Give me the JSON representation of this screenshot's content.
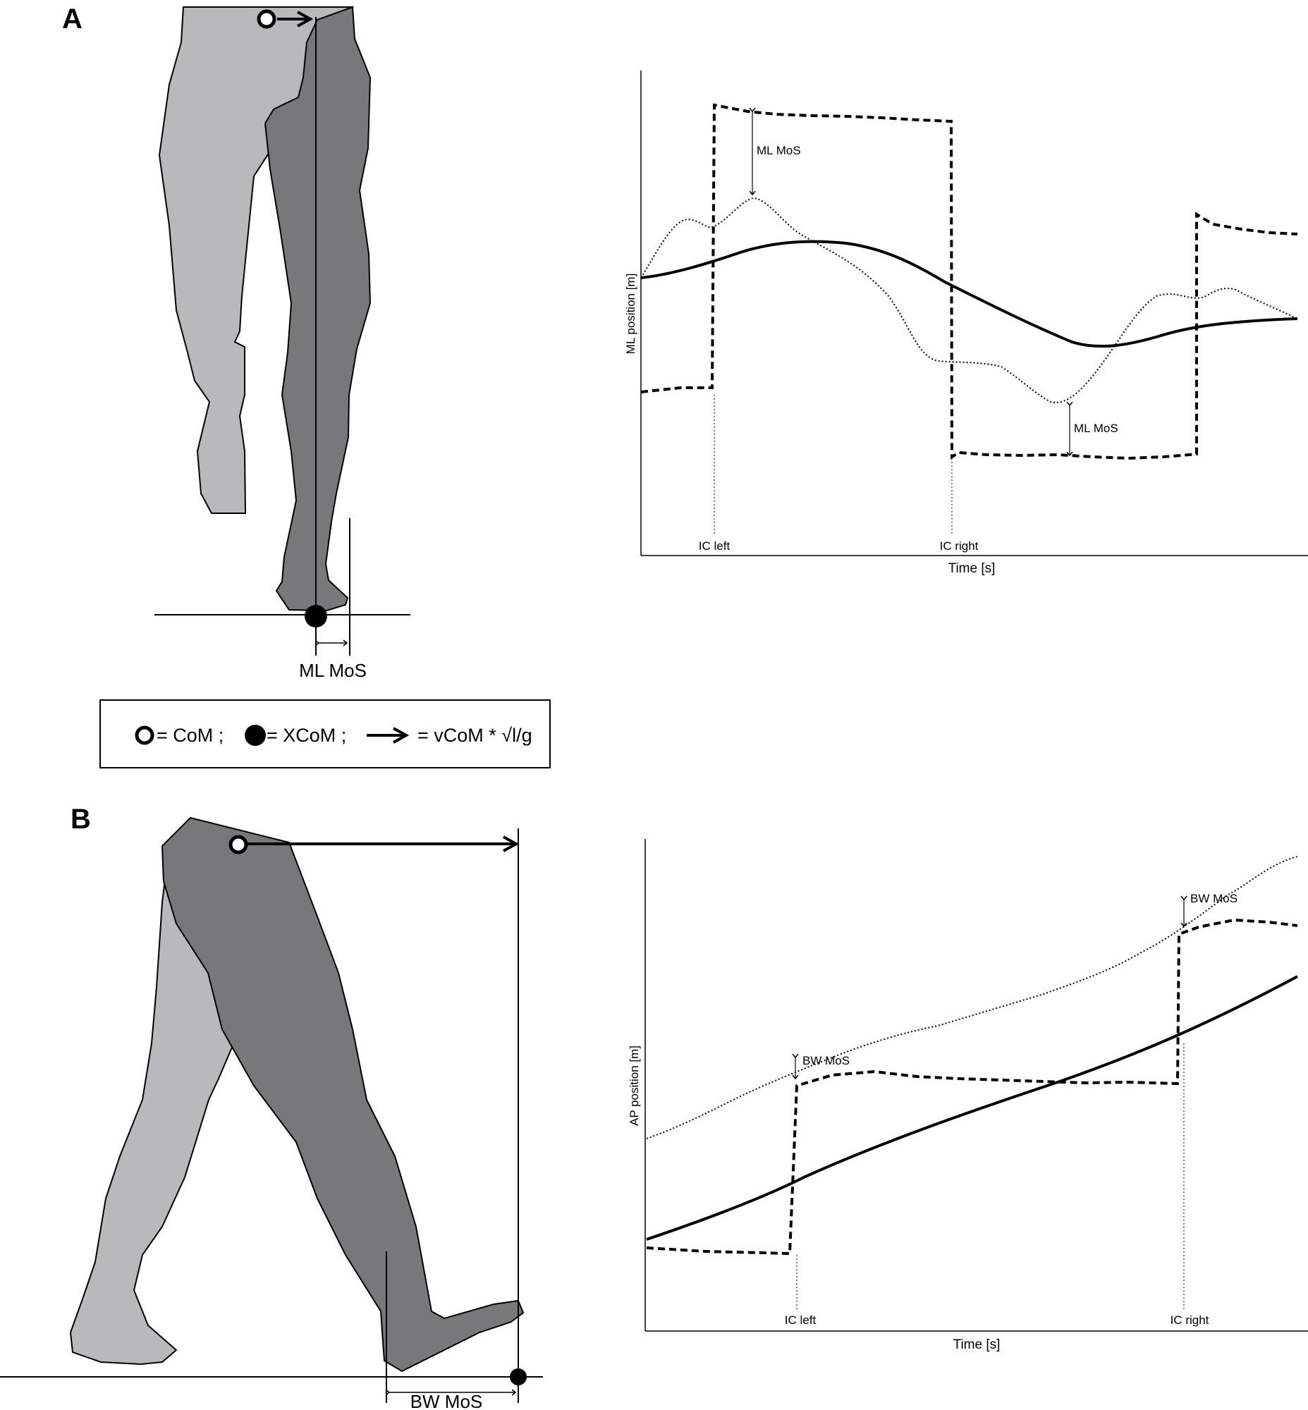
{
  "panels": {
    "a": "A",
    "b": "B"
  },
  "panel_a": {
    "figure_label": "ML MoS",
    "chart": {
      "xlabel": "Time [s]",
      "ylabel": "ML position [m]",
      "annotation_upper": "ML MoS",
      "annotation_lower": "ML MoS",
      "event_left": "IC left",
      "event_right": "IC right"
    }
  },
  "legend": {
    "com": "= CoM ;",
    "xcom": "= XCoM ;",
    "vcom": "= vCoM * √l/g"
  },
  "panel_b": {
    "figure_label": "BW MoS",
    "chart": {
      "xlabel": "Time [s]",
      "ylabel": "AP position [m]",
      "annotation_left": "BW MoS",
      "annotation_right": "BW MoS",
      "event_left": "IC left",
      "event_right": "IC right"
    }
  },
  "colors": {
    "leg_light": "#b8b9ba",
    "leg_dark": "#77787a",
    "line": "#000000"
  },
  "icons": [
    "com-open-circle-icon",
    "xcom-filled-circle-icon",
    "velocity-arrow-icon"
  ]
}
